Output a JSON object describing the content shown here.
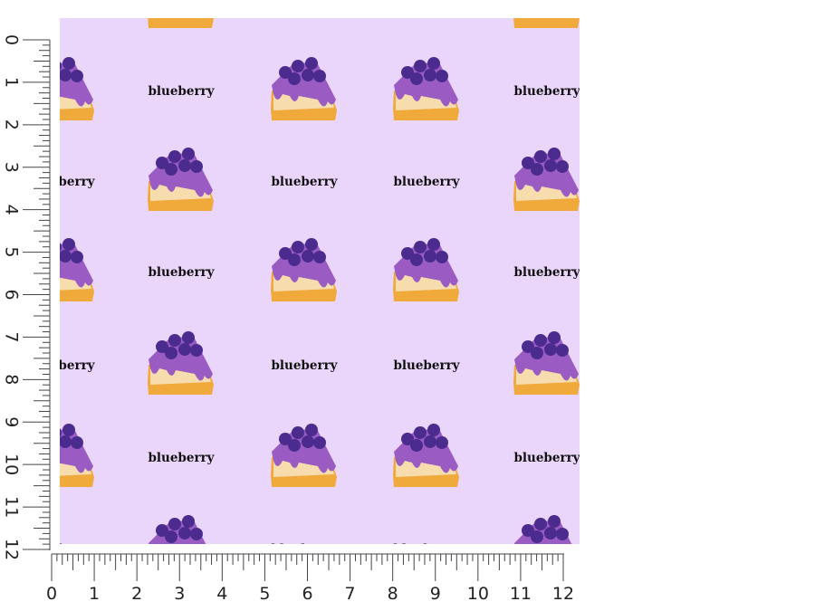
{
  "ruler": {
    "vertical_labels": [
      "0",
      "1",
      "2",
      "3",
      "4",
      "5",
      "6",
      "7",
      "8",
      "9",
      "10",
      "11",
      "12"
    ],
    "horizontal_labels": [
      "0",
      "1",
      "2",
      "3",
      "4",
      "5",
      "6",
      "7",
      "8",
      "9",
      "10",
      "11",
      "12"
    ]
  },
  "pattern": {
    "text": "blueberry"
  }
}
